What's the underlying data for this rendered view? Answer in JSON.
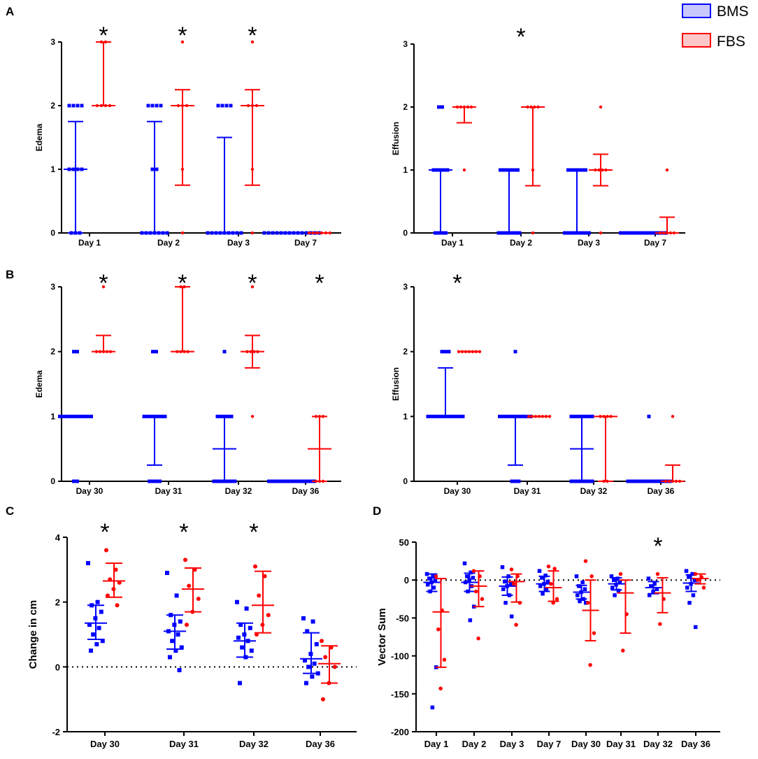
{
  "colors": {
    "bms": "#0000ff",
    "fbs": "#ff0000"
  },
  "legend": [
    {
      "label": "BMS",
      "color": "#0000ff",
      "fill": "#c8c8ff"
    },
    {
      "label": "FBS",
      "color": "#ff0000",
      "fill": "#ffc8c8"
    }
  ],
  "panel_letters": [
    "A",
    "B",
    "C",
    "D"
  ],
  "significance_symbol": "*",
  "chart_data": [
    {
      "id": "A-edema",
      "panel": "A",
      "type": "scatter",
      "ylabel": "Edema",
      "xlabel": "",
      "ylim": [
        0,
        3
      ],
      "yticks": [
        0,
        1,
        2,
        3
      ],
      "categories": [
        "Day 1",
        "Day 2",
        "Day 3",
        "Day 7"
      ],
      "significant": [
        true,
        true,
        true,
        false
      ],
      "series": [
        {
          "name": "BMS",
          "marker": "square",
          "values": [
            [
              0,
              0,
              0,
              1,
              1,
              1,
              1,
              2,
              2,
              2,
              2
            ],
            [
              0,
              0,
              0,
              0,
              0,
              0,
              0,
              1,
              1,
              2,
              2,
              2,
              2
            ],
            [
              0,
              0,
              0,
              0,
              0,
              0,
              0,
              0,
              0,
              2,
              2,
              2,
              2
            ],
            [
              0,
              0,
              0,
              0,
              0,
              0,
              0,
              0,
              0,
              0,
              0,
              0,
              0,
              0
            ]
          ],
          "median": [
            1,
            0,
            0,
            0
          ],
          "iqr": [
            [
              0,
              1.75
            ],
            [
              0,
              1.75
            ],
            [
              0,
              1.5
            ],
            [
              0,
              0
            ]
          ]
        },
        {
          "name": "FBS",
          "marker": "circle",
          "values": [
            [
              2,
              2,
              2,
              2,
              3,
              3
            ],
            [
              0,
              1,
              2,
              2,
              2,
              3
            ],
            [
              0,
              1,
              2,
              2,
              2,
              3
            ],
            [
              0,
              0,
              0,
              0,
              0,
              0
            ]
          ],
          "median": [
            2,
            2,
            2,
            0
          ],
          "iqr": [
            [
              2,
              3
            ],
            [
              0.75,
              2.25
            ],
            [
              0.75,
              2.25
            ],
            [
              0,
              0
            ]
          ]
        }
      ]
    },
    {
      "id": "A-effusion",
      "panel": "A",
      "type": "scatter",
      "ylabel": "Effusion",
      "xlabel": "",
      "ylim": [
        0,
        3
      ],
      "yticks": [
        0,
        1,
        2,
        3
      ],
      "categories": [
        "Day 1",
        "Day 2",
        "Day 3",
        "Day 7"
      ],
      "significant": [
        false,
        true,
        false,
        false
      ],
      "series": [
        {
          "name": "BMS",
          "marker": "square",
          "values": [
            [
              0,
              0,
              0,
              0,
              1,
              1,
              1,
              1,
              1,
              2,
              2
            ],
            [
              0,
              0,
              0,
              0,
              0,
              0,
              0,
              1,
              1,
              1,
              1,
              1,
              1
            ],
            [
              0,
              0,
              0,
              0,
              0,
              0,
              0,
              0,
              1,
              1,
              1,
              1,
              1,
              1
            ],
            [
              0,
              0,
              0,
              0,
              0,
              0,
              0,
              0,
              0,
              0,
              0,
              0,
              0,
              0
            ]
          ],
          "median": [
            1,
            0,
            0,
            0
          ],
          "iqr": [
            [
              0,
              1
            ],
            [
              0,
              1
            ],
            [
              0,
              1
            ],
            [
              0,
              0
            ]
          ]
        },
        {
          "name": "FBS",
          "marker": "circle",
          "values": [
            [
              1,
              2,
              2,
              2,
              2,
              2
            ],
            [
              0,
              1,
              2,
              2,
              2,
              2
            ],
            [
              0,
              1,
              1,
              1,
              1,
              2
            ],
            [
              0,
              0,
              0,
              0,
              0,
              1
            ]
          ],
          "median": [
            2,
            2,
            1,
            0
          ],
          "iqr": [
            [
              1.75,
              2
            ],
            [
              0.75,
              2
            ],
            [
              0.75,
              1.25
            ],
            [
              0,
              0.25
            ]
          ]
        }
      ]
    },
    {
      "id": "B-edema",
      "panel": "B",
      "type": "scatter",
      "ylabel": "Edema",
      "xlabel": "",
      "ylim": [
        0,
        3
      ],
      "yticks": [
        0,
        1,
        2,
        3
      ],
      "categories": [
        "Day 30",
        "Day 31",
        "Day 32",
        "Day 36"
      ],
      "significant": [
        true,
        true,
        true,
        true
      ],
      "series": [
        {
          "name": "BMS",
          "marker": "square",
          "values": [
            [
              0,
              0,
              1,
              1,
              1,
              1,
              1,
              1,
              1,
              1,
              1,
              1,
              2,
              2
            ],
            [
              0,
              0,
              0,
              0,
              1,
              1,
              1,
              1,
              1,
              1,
              1,
              2,
              2
            ],
            [
              0,
              0,
              0,
              0,
              0,
              0,
              0,
              1,
              1,
              1,
              1,
              1,
              2
            ],
            [
              0,
              0,
              0,
              0,
              0,
              0,
              0,
              0,
              0,
              0,
              0,
              0,
              0,
              0
            ]
          ],
          "median": [
            1,
            1,
            0.5,
            0
          ],
          "iqr": [
            [
              1,
              1
            ],
            [
              0.25,
              1
            ],
            [
              0,
              1
            ],
            [
              0,
              0
            ]
          ]
        },
        {
          "name": "FBS",
          "marker": "circle",
          "values": [
            [
              2,
              2,
              2,
              2,
              2,
              3
            ],
            [
              2,
              2,
              2,
              2,
              3,
              3
            ],
            [
              1,
              2,
              2,
              2,
              2,
              3
            ],
            [
              0,
              0,
              0,
              1,
              1,
              1
            ]
          ],
          "median": [
            2,
            2,
            2,
            0.5
          ],
          "iqr": [
            [
              2,
              2.25
            ],
            [
              2,
              3
            ],
            [
              1.75,
              2.25
            ],
            [
              0,
              1
            ]
          ]
        }
      ]
    },
    {
      "id": "B-effusion",
      "panel": "B",
      "type": "scatter",
      "ylabel": "Effusion",
      "xlabel": "",
      "ylim": [
        0,
        3
      ],
      "yticks": [
        0,
        1,
        2,
        3
      ],
      "categories": [
        "Day 30",
        "Day 31",
        "Day 32",
        "Day 36"
      ],
      "significant": [
        true,
        false,
        false,
        false
      ],
      "series": [
        {
          "name": "BMS",
          "marker": "square",
          "values": [
            [
              1,
              1,
              1,
              1,
              1,
              1,
              1,
              1,
              1,
              1,
              1,
              2,
              2,
              2
            ],
            [
              0,
              0,
              0,
              1,
              1,
              1,
              1,
              1,
              1,
              1,
              1,
              1,
              1,
              2
            ],
            [
              0,
              0,
              0,
              0,
              0,
              0,
              0,
              1,
              1,
              1,
              1,
              1,
              1,
              1
            ],
            [
              0,
              0,
              0,
              0,
              0,
              0,
              0,
              0,
              0,
              0,
              0,
              0,
              0,
              1
            ]
          ],
          "median": [
            1,
            1,
            0.5,
            0
          ],
          "iqr": [
            [
              1,
              1.75
            ],
            [
              0.25,
              1
            ],
            [
              0,
              1
            ],
            [
              0,
              0
            ]
          ]
        },
        {
          "name": "FBS",
          "marker": "circle",
          "values": [
            [
              2,
              2,
              2,
              2,
              2,
              2,
              2
            ],
            [
              1,
              1,
              1,
              1,
              1,
              1,
              1
            ],
            [
              0,
              0,
              1,
              1,
              1,
              1
            ],
            [
              0,
              0,
              0,
              0,
              0,
              1
            ]
          ],
          "median": [
            2,
            1,
            1,
            0
          ],
          "iqr": [
            [
              2,
              2
            ],
            [
              1,
              1
            ],
            [
              0,
              1
            ],
            [
              0,
              0.25
            ]
          ]
        }
      ]
    },
    {
      "id": "C",
      "panel": "C",
      "type": "scatter",
      "ylabel": "Change in cm",
      "xlabel": "",
      "ylim": [
        -2,
        4
      ],
      "yticks": [
        -2,
        0,
        2,
        4
      ],
      "zero_line": true,
      "categories": [
        "Day 30",
        "Day 31",
        "Day 32",
        "Day 36"
      ],
      "significant": [
        true,
        true,
        true,
        false
      ],
      "series": [
        {
          "name": "BMS",
          "marker": "square",
          "values": [
            [
              3.2,
              2.0,
              1.9,
              1.7,
              1.5,
              1.3,
              1.2,
              1.0,
              0.8,
              0.7,
              0.5
            ],
            [
              2.9,
              2.2,
              1.6,
              1.4,
              1.3,
              1.1,
              1.0,
              0.8,
              0.6,
              0.5,
              0.3,
              -0.1
            ],
            [
              2.0,
              1.8,
              1.3,
              1.2,
              1.0,
              0.9,
              0.8,
              0.6,
              0.5,
              0.3,
              -0.5
            ],
            [
              1.5,
              1.4,
              1.1,
              0.7,
              0.4,
              0.2,
              0.1,
              0.0,
              -0.2,
              -0.3,
              -0.5
            ]
          ],
          "mean": [
            1.35,
            1.1,
            0.8,
            0.25
          ],
          "sd": [
            [
              0.85,
              1.9
            ],
            [
              0.55,
              1.6
            ],
            [
              0.3,
              1.35
            ],
            [
              -0.2,
              1.05
            ]
          ]
        },
        {
          "name": "FBS",
          "marker": "circle",
          "values": [
            [
              3.6,
              3.0,
              2.7,
              2.6,
              2.4,
              2.2,
              1.9
            ],
            [
              3.3,
              3.0,
              2.5,
              2.1,
              1.7,
              1.3
            ],
            [
              3.1,
              2.8,
              2.2,
              1.6,
              1.3,
              1.0
            ],
            [
              0.8,
              0.6,
              0.3,
              0.0,
              -0.5,
              -1.0
            ]
          ],
          "mean": [
            2.65,
            2.4,
            1.9,
            0.1
          ],
          "sd": [
            [
              2.15,
              3.2
            ],
            [
              1.7,
              3.05
            ],
            [
              1.05,
              2.95
            ],
            [
              -0.5,
              0.65
            ]
          ]
        }
      ]
    },
    {
      "id": "D",
      "panel": "D",
      "type": "scatter",
      "ylabel": "Vector Sum",
      "xlabel": "",
      "ylim": [
        -200,
        50
      ],
      "yticks": [
        -200,
        -150,
        -100,
        -50,
        0,
        50
      ],
      "zero_line": true,
      "categories": [
        "Day 1",
        "Day 2",
        "Day 3",
        "Day 7",
        "Day 30",
        "Day 31",
        "Day 32",
        "Day 36"
      ],
      "significant": [
        false,
        false,
        false,
        false,
        false,
        false,
        true,
        false
      ],
      "series": [
        {
          "name": "BMS",
          "marker": "square",
          "values": [
            [
              8,
              5,
              2,
              0,
              -3,
              -6,
              -10,
              -15,
              -115,
              -168
            ],
            [
              22,
              10,
              5,
              3,
              0,
              -3,
              -8,
              -15,
              -35,
              -53
            ],
            [
              17,
              5,
              -2,
              -5,
              -8,
              -12,
              -20,
              -30,
              -48
            ],
            [
              12,
              6,
              3,
              -2,
              -5,
              -8,
              -12,
              -18
            ],
            [
              5,
              -3,
              -8,
              -12,
              -16,
              -20,
              -25,
              -28,
              -30
            ],
            [
              5,
              2,
              0,
              -3,
              -6,
              -10,
              -14,
              -20
            ],
            [
              2,
              -5,
              -8,
              -12,
              -15,
              -20
            ],
            [
              12,
              8,
              4,
              0,
              -5,
              -10,
              -20,
              -30,
              -62
            ]
          ],
          "mean": [
            -3,
            -3,
            -8,
            -5,
            -16,
            -5,
            -10,
            -4
          ],
          "sd": [
            [
              -15,
              8
            ],
            [
              -15,
              9
            ],
            [
              -20,
              4
            ],
            [
              -15,
              5
            ],
            [
              -25,
              -7
            ],
            [
              -13,
              3
            ],
            [
              -18,
              -2
            ],
            [
              -15,
              7
            ]
          ]
        },
        {
          "name": "FBS",
          "marker": "circle",
          "values": [
            [
              5,
              -40,
              -65,
              -105,
              -143
            ],
            [
              12,
              5,
              -15,
              -25,
              -77
            ],
            [
              14,
              5,
              -5,
              -30,
              -59
            ],
            [
              18,
              15,
              -5,
              -25,
              -30
            ],
            [
              25,
              5,
              -30,
              -70,
              -112
            ],
            [
              8,
              -45,
              -93
            ],
            [
              8,
              -25,
              -58
            ],
            [
              8,
              4,
              0,
              -10
            ]
          ],
          "mean": [
            -42,
            -8,
            -2,
            -10,
            -40,
            -17,
            -17,
            2
          ],
          "sd": [
            [
              -115,
              2
            ],
            [
              -35,
              12
            ],
            [
              -29,
              8
            ],
            [
              -28,
              12
            ],
            [
              -80,
              0
            ],
            [
              -70,
              0
            ],
            [
              -43,
              3
            ],
            [
              -5,
              8
            ]
          ]
        }
      ]
    }
  ]
}
